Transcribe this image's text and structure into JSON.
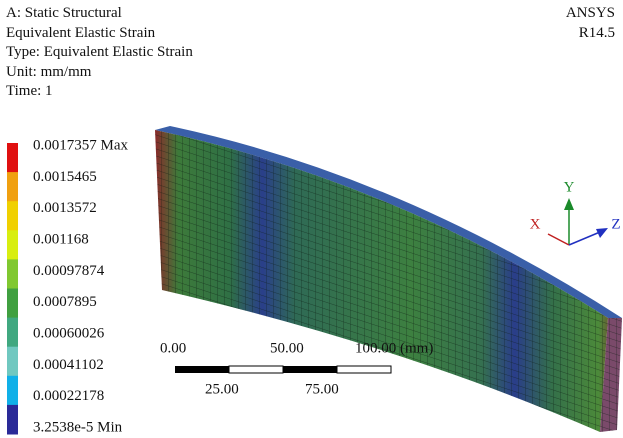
{
  "header": {
    "lines": [
      "A: Static Structural",
      "Equivalent Elastic Strain",
      "Type: Equivalent Elastic Strain",
      "Unit: mm/mm",
      "Time: 1"
    ],
    "product": "ANSYS",
    "version": "R14.5"
  },
  "legend": {
    "items": [
      {
        "label": "0.0017357 Max",
        "color": "#e01010"
      },
      {
        "label": "0.0015465",
        "color": "#f0a010"
      },
      {
        "label": "0.0013572",
        "color": "#f0d000"
      },
      {
        "label": "0.001168",
        "color": "#d8ee10"
      },
      {
        "label": "0.00097874",
        "color": "#80c830"
      },
      {
        "label": "0.0007895",
        "color": "#40a040"
      },
      {
        "label": "0.00060026",
        "color": "#40a880"
      },
      {
        "label": "0.00041102",
        "color": "#70c8c0"
      },
      {
        "label": "0.00022178",
        "color": "#10b0e8"
      },
      {
        "label": "3.2538e-5 Min",
        "color": "#2a2a98"
      }
    ]
  },
  "scale_bar": {
    "top_labels": [
      "0.00",
      "50.00",
      "100.00 (mm)"
    ],
    "bottom_labels": [
      "25.00",
      "75.00"
    ]
  },
  "triad": {
    "x": "X",
    "y": "Y",
    "z": "Z"
  }
}
